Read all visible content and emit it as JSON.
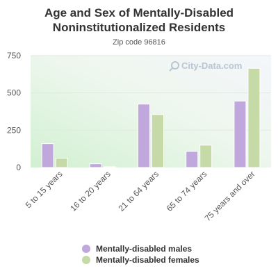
{
  "colors": {
    "males": "#c0a8dc",
    "females": "#c6daa8",
    "watermark": "#b9c6d2"
  },
  "watermark": "City-Data.com",
  "chart_data": {
    "type": "bar",
    "title": "Age and Sex of Mentally-Disabled Noninstitutionalized Residents",
    "title_lines": [
      "Age and Sex of Mentally-Disabled",
      "Noninstitutionalized Residents"
    ],
    "subtitle": "Zip code 96816",
    "categories": [
      "5 to 15 years",
      "16 to 20 years",
      "21 to 64 years",
      "65 to 74 years",
      "75 years and over"
    ],
    "series": [
      {
        "name": "Mentally-disabled males",
        "values": [
          160,
          25,
          425,
          108,
          445
        ]
      },
      {
        "name": "Mentally-disabled females",
        "values": [
          62,
          5,
          355,
          150,
          665
        ]
      }
    ],
    "yticks": [
      0,
      250,
      500,
      750
    ],
    "ylim": [
      0,
      750
    ],
    "grid": true,
    "legend_position": "bottom"
  }
}
